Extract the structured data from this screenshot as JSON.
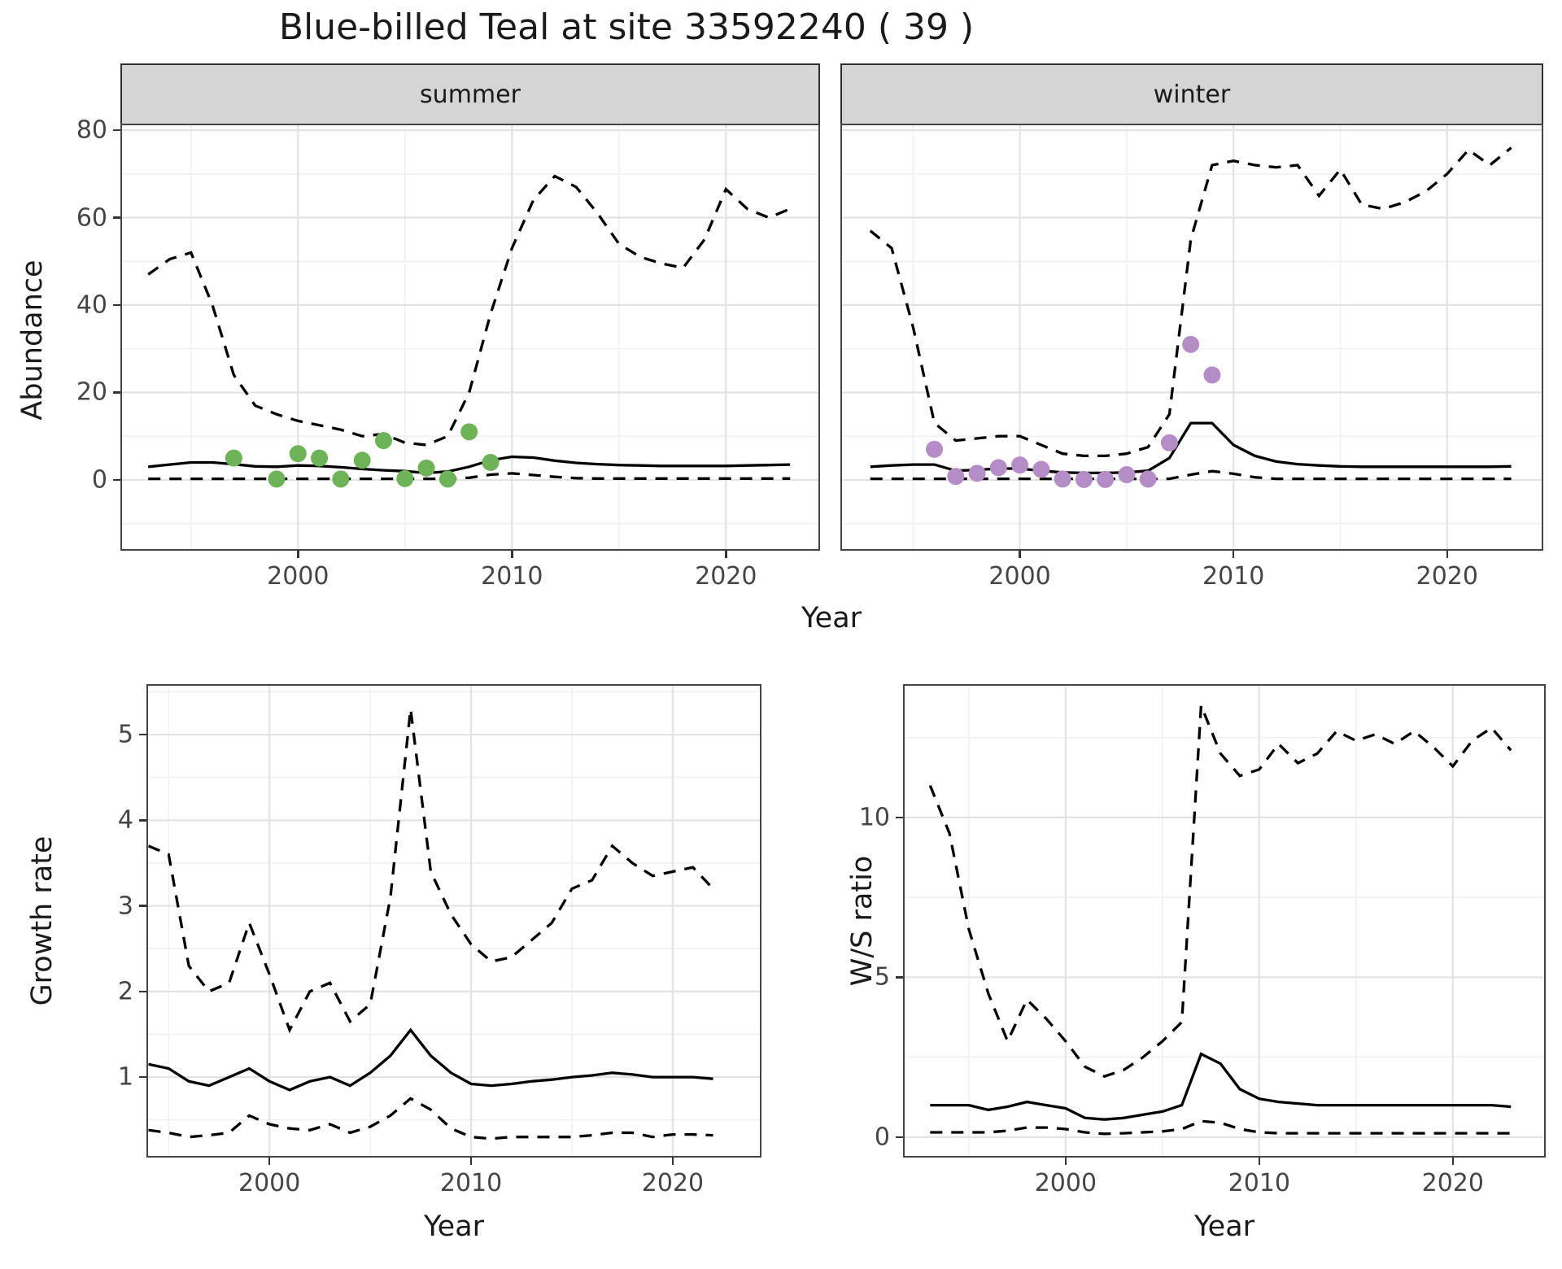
{
  "title": "Blue-billed Teal at site 33592240 ( 39 )",
  "colors": {
    "summer_points": "#6db357",
    "winter_points": "#b48cc6",
    "line": "#000000",
    "grid_major": "#e3e3e3",
    "grid_minor": "#f1f1f1",
    "panel_border": "#454545",
    "strip_bg": "#d5d5d5",
    "tick_label": "#454545",
    "text": "#1a1a1a"
  },
  "chart_data": [
    {
      "id": "abundance-summer",
      "type": "line",
      "facet_label": "summer",
      "xlabel": "Year",
      "ylabel": "Abundance",
      "x_ticks": [
        2000,
        2010,
        2020
      ],
      "x_minor": [
        1995,
        2005,
        2015
      ],
      "y_ticks": [
        0,
        20,
        40,
        60,
        80
      ],
      "y_minor": [
        -10,
        10,
        30,
        50,
        70
      ],
      "xlim": [
        1991.7,
        2024.4
      ],
      "ylim": [
        -16.2,
        81.5
      ],
      "years": [
        1993,
        1994,
        1995,
        1996,
        1997,
        1998,
        1999,
        2000,
        2001,
        2002,
        2003,
        2004,
        2005,
        2006,
        2007,
        2008,
        2009,
        2010,
        2011,
        2012,
        2013,
        2014,
        2015,
        2016,
        2017,
        2018,
        2019,
        2020,
        2021,
        2022,
        2023
      ],
      "median": [
        3.0,
        3.5,
        4.0,
        4.0,
        3.6,
        3.1,
        3.0,
        3.3,
        3.2,
        2.9,
        2.5,
        2.2,
        2.0,
        1.6,
        1.9,
        3.0,
        4.5,
        5.3,
        5.1,
        4.4,
        3.9,
        3.6,
        3.4,
        3.3,
        3.2,
        3.2,
        3.2,
        3.2,
        3.3,
        3.4,
        3.5
      ],
      "upper": [
        47,
        50.5,
        52,
        40,
        24,
        17,
        15,
        13.5,
        12.5,
        11.5,
        10,
        10.5,
        8.5,
        8,
        10,
        20,
        38,
        53,
        64,
        69.5,
        67,
        61,
        54,
        51,
        49.5,
        48.5,
        55,
        66.5,
        62,
        60,
        62
      ],
      "lower": [
        0.25,
        0.25,
        0.25,
        0.25,
        0.25,
        0.25,
        0.25,
        0.25,
        0.25,
        0.25,
        0.25,
        0.25,
        0.25,
        0.25,
        0.25,
        0.5,
        1.2,
        1.5,
        1.1,
        0.7,
        0.4,
        0.3,
        0.3,
        0.3,
        0.3,
        0.3,
        0.3,
        0.3,
        0.3,
        0.3,
        0.3
      ],
      "points": [
        [
          1997,
          5
        ],
        [
          1999,
          0.2
        ],
        [
          2000,
          6
        ],
        [
          2001,
          5
        ],
        [
          2002,
          0.2
        ],
        [
          2003,
          4.5
        ],
        [
          2004,
          9
        ],
        [
          2005,
          0.3
        ],
        [
          2006,
          2.7
        ],
        [
          2007,
          0.2
        ],
        [
          2008,
          11
        ],
        [
          2009,
          4
        ]
      ],
      "point_color_key": "summer_points"
    },
    {
      "id": "abundance-winter",
      "type": "line",
      "facet_label": "winter",
      "xlabel": "Year",
      "ylabel": "Abundance",
      "x_ticks": [
        2000,
        2010,
        2020
      ],
      "x_minor": [
        1995,
        2005,
        2015
      ],
      "y_ticks": [
        0,
        20,
        40,
        60,
        80
      ],
      "y_minor": [
        -10,
        10,
        30,
        50,
        70
      ],
      "xlim": [
        1991.6,
        2024.5
      ],
      "ylim": [
        -16.2,
        81.5
      ],
      "years": [
        1993,
        1994,
        1995,
        1996,
        1997,
        1998,
        1999,
        2000,
        2001,
        2002,
        2003,
        2004,
        2005,
        2006,
        2007,
        2008,
        2009,
        2010,
        2011,
        2012,
        2013,
        2014,
        2015,
        2016,
        2017,
        2018,
        2019,
        2020,
        2021,
        2022,
        2023
      ],
      "median": [
        3.0,
        3.3,
        3.5,
        3.5,
        2.1,
        2.3,
        2.6,
        2.6,
        2.1,
        1.7,
        1.6,
        1.6,
        1.7,
        2.1,
        5.0,
        13,
        13,
        8,
        5.5,
        4.2,
        3.6,
        3.3,
        3.1,
        3.0,
        3.0,
        3.0,
        3.0,
        3.0,
        3.0,
        3.0,
        3.1
      ],
      "upper": [
        57,
        53,
        35,
        13,
        9,
        9.5,
        10,
        10,
        8,
        6,
        5.5,
        5.5,
        6,
        7.5,
        15,
        55,
        72,
        73,
        72,
        71.5,
        72,
        65,
        71,
        63,
        62,
        63.5,
        66,
        70,
        75.5,
        72,
        76
      ],
      "lower": [
        0.25,
        0.25,
        0.25,
        0.25,
        0.25,
        0.25,
        0.25,
        0.25,
        0.25,
        0.25,
        0.25,
        0.25,
        0.25,
        0.25,
        0.25,
        1.2,
        2.0,
        1.4,
        0.6,
        0.25,
        0.25,
        0.25,
        0.25,
        0.25,
        0.25,
        0.25,
        0.25,
        0.25,
        0.25,
        0.25,
        0.25
      ],
      "points": [
        [
          1996,
          7
        ],
        [
          1997,
          0.8
        ],
        [
          1998,
          1.5
        ],
        [
          1999,
          2.8
        ],
        [
          2000,
          3.4
        ],
        [
          2001,
          2.4
        ],
        [
          2002,
          0.2
        ],
        [
          2003,
          0.1
        ],
        [
          2004,
          0.1
        ],
        [
          2005,
          1.2
        ],
        [
          2006,
          0.2
        ],
        [
          2007,
          8.5
        ],
        [
          2008,
          31
        ],
        [
          2009,
          24
        ]
      ],
      "point_color_key": "winter_points"
    },
    {
      "id": "growth-rate",
      "type": "line",
      "facet_label": "",
      "xlabel": "Year",
      "ylabel": "Growth rate",
      "x_ticks": [
        2000,
        2010,
        2020
      ],
      "x_minor": [
        1995,
        2005,
        2015
      ],
      "y_ticks": [
        1,
        2,
        3,
        4,
        5
      ],
      "y_minor": [
        0.5,
        1.5,
        2.5,
        3.5,
        4.5,
        5.5
      ],
      "xlim": [
        1993.9,
        2024.4
      ],
      "ylim": [
        0.06,
        5.59
      ],
      "years": [
        1994,
        1995,
        1996,
        1997,
        1998,
        1999,
        2000,
        2001,
        2002,
        2003,
        2004,
        2005,
        2006,
        2007,
        2008,
        2009,
        2010,
        2011,
        2012,
        2013,
        2014,
        2015,
        2016,
        2017,
        2018,
        2019,
        2020,
        2021,
        2022
      ],
      "median": [
        1.15,
        1.1,
        0.95,
        0.9,
        1.0,
        1.1,
        0.95,
        0.85,
        0.95,
        1.0,
        0.9,
        1.05,
        1.25,
        1.55,
        1.25,
        1.05,
        0.92,
        0.9,
        0.92,
        0.95,
        0.97,
        1.0,
        1.02,
        1.05,
        1.03,
        1.0,
        1.0,
        1.0,
        0.98
      ],
      "upper": [
        3.7,
        3.6,
        2.3,
        2.0,
        2.1,
        2.8,
        2.2,
        1.55,
        2.0,
        2.1,
        1.65,
        1.85,
        3.1,
        5.3,
        3.4,
        2.9,
        2.55,
        2.35,
        2.4,
        2.6,
        2.8,
        3.2,
        3.3,
        3.7,
        3.5,
        3.35,
        3.4,
        3.45,
        3.2
      ],
      "lower": [
        0.38,
        0.35,
        0.3,
        0.32,
        0.35,
        0.55,
        0.45,
        0.4,
        0.38,
        0.45,
        0.35,
        0.42,
        0.55,
        0.75,
        0.62,
        0.4,
        0.3,
        0.28,
        0.3,
        0.3,
        0.3,
        0.3,
        0.32,
        0.35,
        0.35,
        0.3,
        0.33,
        0.33,
        0.32
      ],
      "points": [],
      "point_color_key": "summer_points"
    },
    {
      "id": "ws-ratio",
      "type": "line",
      "facet_label": "",
      "xlabel": "Year",
      "ylabel": "W/S ratio",
      "x_ticks": [
        2000,
        2010,
        2020
      ],
      "x_minor": [
        1995,
        2005,
        2015
      ],
      "y_ticks": [
        0,
        5,
        10
      ],
      "y_minor": [
        2.5,
        7.5,
        12.5
      ],
      "xlim": [
        1991.6,
        2024.8
      ],
      "ylim": [
        -0.64,
        14.17
      ],
      "years": [
        1993,
        1994,
        1995,
        1996,
        1997,
        1998,
        1999,
        2000,
        2001,
        2002,
        2003,
        2004,
        2005,
        2006,
        2007,
        2008,
        2009,
        2010,
        2011,
        2012,
        2013,
        2014,
        2015,
        2016,
        2017,
        2018,
        2019,
        2020,
        2021,
        2022,
        2023
      ],
      "median": [
        1.0,
        1.0,
        1.0,
        0.85,
        0.95,
        1.1,
        1.0,
        0.9,
        0.6,
        0.55,
        0.6,
        0.7,
        0.8,
        1.0,
        2.6,
        2.3,
        1.5,
        1.2,
        1.1,
        1.05,
        1.0,
        1.0,
        1.0,
        1.0,
        1.0,
        1.0,
        1.0,
        1.0,
        1.0,
        1.0,
        0.95
      ],
      "upper": [
        11,
        9.5,
        6.5,
        4.5,
        3.0,
        4.3,
        3.7,
        3.0,
        2.2,
        1.9,
        2.1,
        2.5,
        3.0,
        3.6,
        13.5,
        12.0,
        11.3,
        11.5,
        12.3,
        11.7,
        12.0,
        12.7,
        12.4,
        12.6,
        12.3,
        12.7,
        12.2,
        11.6,
        12.4,
        12.8,
        12.1
      ],
      "lower": [
        0.15,
        0.15,
        0.15,
        0.15,
        0.2,
        0.3,
        0.3,
        0.25,
        0.15,
        0.1,
        0.12,
        0.15,
        0.18,
        0.25,
        0.5,
        0.45,
        0.25,
        0.15,
        0.12,
        0.12,
        0.12,
        0.12,
        0.12,
        0.12,
        0.12,
        0.12,
        0.12,
        0.12,
        0.12,
        0.12,
        0.12
      ],
      "points": [],
      "point_color_key": "winter_points"
    }
  ]
}
